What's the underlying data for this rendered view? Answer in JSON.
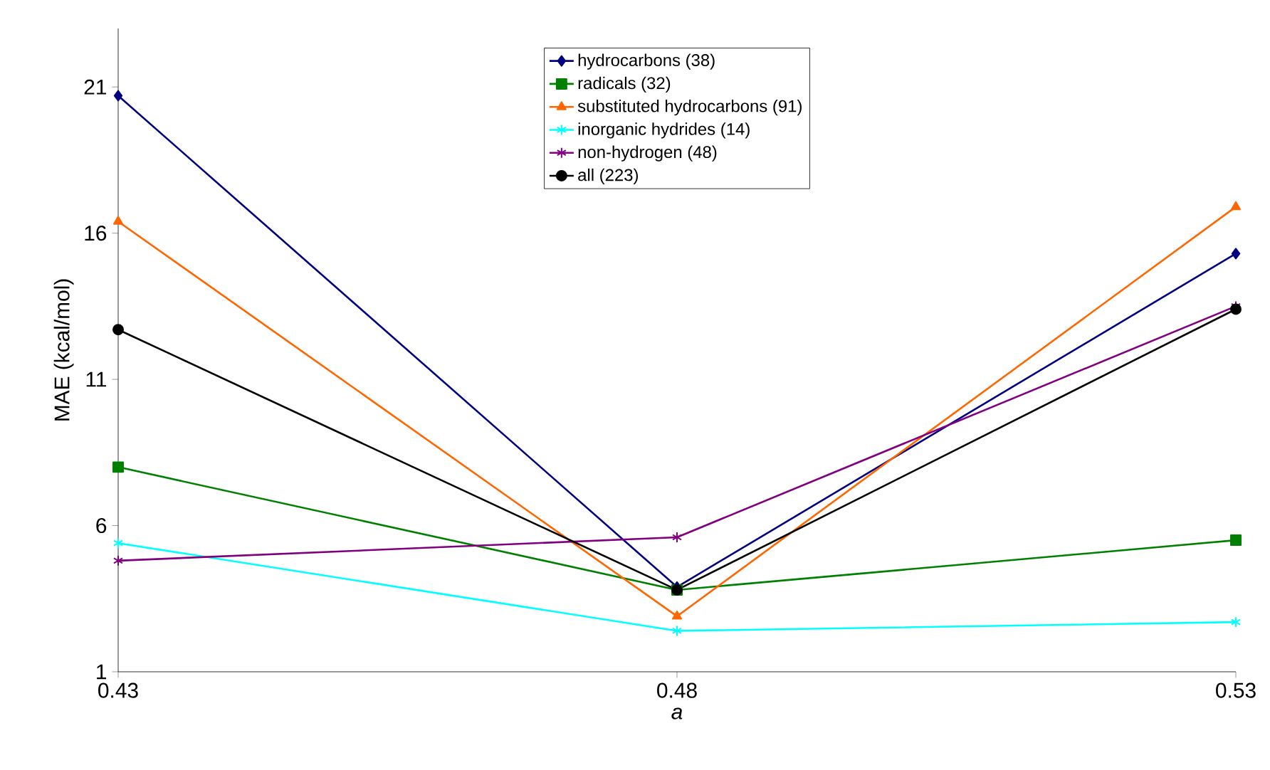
{
  "chart_data": {
    "type": "line",
    "xlabel": "a",
    "ylabel": "MAE (kcal/mol)",
    "x": [
      0.43,
      0.48,
      0.53
    ],
    "xlim": [
      0.43,
      0.53
    ],
    "xticks": [
      0.43,
      0.48,
      0.53
    ],
    "ylim": [
      1,
      23
    ],
    "yticks": [
      1,
      6,
      11,
      16,
      21
    ],
    "grid": false,
    "legend": "top",
    "series": [
      {
        "name": "hydrocarbons (38)",
        "color": "#000080",
        "marker": "diamond",
        "values": [
          20.7,
          3.9,
          15.3
        ]
      },
      {
        "name": "radicals (32)",
        "color": "#008000",
        "marker": "square",
        "values": [
          8.0,
          3.8,
          5.5
        ]
      },
      {
        "name": "substituted hydrocarbons (91)",
        "color": "#ff6600",
        "marker": "triangle",
        "values": [
          16.4,
          2.9,
          16.9
        ]
      },
      {
        "name": "inorganic hydrides (14)",
        "color": "#00ffff",
        "marker": "cross",
        "values": [
          5.4,
          2.4,
          2.7
        ]
      },
      {
        "name": "non-hydrogen (48)",
        "color": "#800080",
        "marker": "cross",
        "values": [
          4.8,
          5.6,
          13.5
        ]
      },
      {
        "name": "all (223)",
        "color": "#000000",
        "marker": "circle",
        "values": [
          12.7,
          3.8,
          13.4
        ]
      }
    ]
  }
}
